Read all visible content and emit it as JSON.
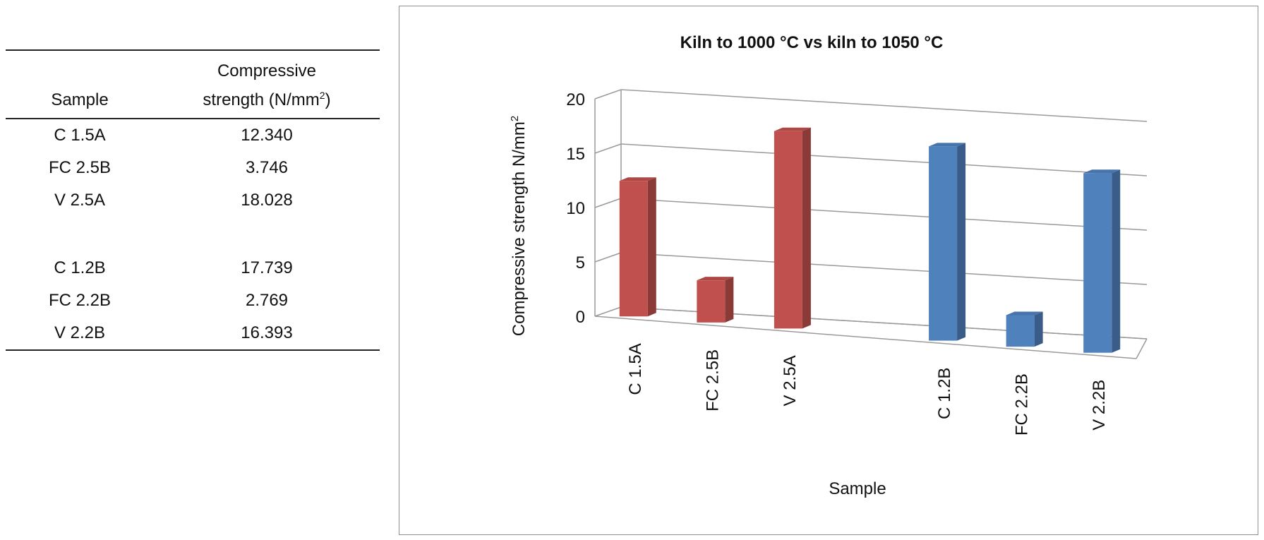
{
  "table": {
    "header_sample": "Sample",
    "header_strength": "Compressive",
    "header_strength_line2": "strength (N/mm",
    "header_strength_sup": "2",
    "header_strength_close": ")",
    "group1": [
      {
        "sample": "C 1.5A",
        "value": "12.340"
      },
      {
        "sample": "FC 2.5B",
        "value": "3.746"
      },
      {
        "sample": "V 2.5A",
        "value": "18.028"
      }
    ],
    "group2": [
      {
        "sample": "C 1.2B",
        "value": "17.739"
      },
      {
        "sample": "FC 2.2B",
        "value": "2.769"
      },
      {
        "sample": "V 2.2B",
        "value": "16.393"
      }
    ]
  },
  "chart_data": {
    "type": "bar",
    "title": "Kiln to 1000 °C vs kiln to 1050 °C",
    "xlabel": "Sample",
    "ylabel": "Compressive strength N/mm",
    "ylabel_sup": "2",
    "ylim": [
      0,
      20
    ],
    "yticks": [
      "0",
      "5",
      "10",
      "15",
      "20"
    ],
    "categories": [
      "C 1.5A",
      "FC 2.5B",
      "V 2.5A",
      "",
      "C 1.2B",
      "FC 2.2B",
      "V 2.2B"
    ],
    "values": [
      12.34,
      3.746,
      18.028,
      null,
      17.739,
      2.769,
      16.393
    ],
    "colors": [
      "#c0504d",
      "#c0504d",
      "#c0504d",
      null,
      "#4f81bd",
      "#4f81bd",
      "#4f81bd"
    ],
    "grid": true,
    "legend": "none"
  }
}
